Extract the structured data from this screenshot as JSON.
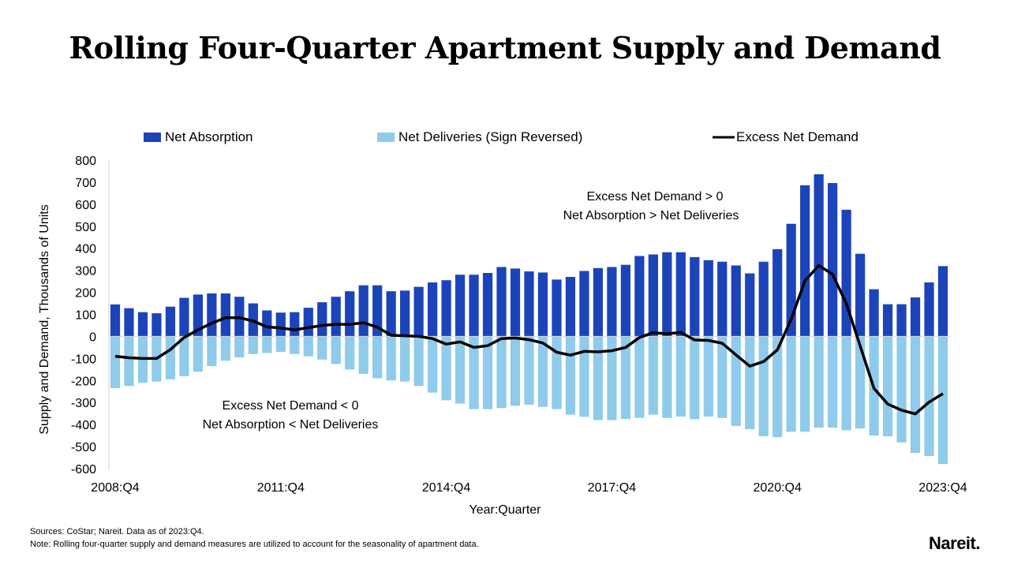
{
  "chart_data": {
    "type": "bar",
    "title": "Rolling Four-Quarter Apartment Supply and Demand",
    "xlabel": "Year:Quarter",
    "ylabel": "Supply and Demand, Thousands of Units",
    "ylim": [
      -600,
      800
    ],
    "yticks": [
      800,
      700,
      600,
      500,
      400,
      300,
      200,
      100,
      0,
      -100,
      -200,
      -300,
      -400,
      -500,
      -600
    ],
    "xtick_labels": [
      "2008:Q4",
      "2011:Q4",
      "2014:Q4",
      "2017:Q4",
      "2020:Q4",
      "2023:Q4"
    ],
    "xtick_every": 12,
    "legend_position": "top",
    "n_quarters": 61,
    "series": [
      {
        "name": "Net Absorption",
        "type": "bar",
        "color": "#1C44B9",
        "values": [
          145,
          128,
          110,
          105,
          135,
          175,
          190,
          195,
          195,
          180,
          150,
          118,
          108,
          110,
          130,
          155,
          180,
          205,
          232,
          232,
          205,
          208,
          225,
          245,
          255,
          280,
          280,
          288,
          315,
          308,
          295,
          290,
          258,
          270,
          297,
          310,
          315,
          325,
          365,
          372,
          382,
          382,
          360,
          346,
          339,
          322,
          286,
          339,
          396,
          511,
          686,
          736,
          696,
          575,
          375,
          214,
          146,
          146,
          177,
          245,
          319
        ]
      },
      {
        "name": "Net Deliveries (Sign Reversed)",
        "type": "bar",
        "color": "#8FCBEA",
        "values": [
          -235,
          -225,
          -210,
          -205,
          -195,
          -180,
          -160,
          -135,
          -110,
          -95,
          -80,
          -75,
          -70,
          -80,
          -90,
          -105,
          -125,
          -150,
          -170,
          -190,
          -200,
          -205,
          -225,
          -255,
          -290,
          -305,
          -330,
          -330,
          -325,
          -315,
          -310,
          -320,
          -330,
          -355,
          -365,
          -380,
          -380,
          -375,
          -370,
          -355,
          -370,
          -364,
          -376,
          -364,
          -370,
          -406,
          -421,
          -453,
          -457,
          -433,
          -433,
          -414,
          -414,
          -426,
          -418,
          -450,
          -453,
          -481,
          -529,
          -543,
          -579
        ]
      },
      {
        "name": "Excess Net Demand",
        "type": "line",
        "color": "#000000",
        "values": [
          -90,
          -97,
          -100,
          -100,
          -60,
          -5,
          30,
          60,
          85,
          85,
          70,
          43,
          38,
          30,
          40,
          50,
          55,
          55,
          62,
          42,
          5,
          3,
          0,
          -10,
          -35,
          -25,
          -50,
          -42,
          -10,
          -7,
          -15,
          -30,
          -72,
          -85,
          -68,
          -70,
          -65,
          -50,
          -5,
          17,
          12,
          18,
          -16,
          -18,
          -31,
          -84,
          -135,
          -114,
          -61,
          78,
          253,
          322,
          282,
          149,
          -43,
          -236,
          -307,
          -335,
          -352,
          -298,
          -260
        ]
      }
    ],
    "annotations": [
      {
        "lines": [
          "Excess Net Demand > 0",
          "Net Absorption > Net Deliveries"
        ]
      },
      {
        "lines": [
          "Excess Net Demand < 0",
          "Net Absorption < Net Deliveries"
        ]
      }
    ]
  },
  "footer": {
    "sources": "Sources: CoStar; Nareit. Data as of 2023:Q4.",
    "note": "Note: Rolling four-quarter supply and demand measures are utilized to account for the seasonality of apartment data.",
    "logo": "Nareit."
  }
}
